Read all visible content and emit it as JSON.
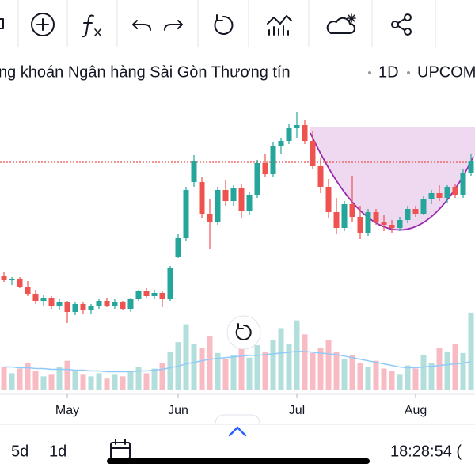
{
  "header": {
    "title": "ng khoán Ngân hàng Sài Gòn Thương tín",
    "interval": "1D",
    "exchange": "UPCOM"
  },
  "chart_data": {
    "type": "candlestick",
    "categories": [
      null,
      null,
      null,
      null,
      null,
      null,
      null,
      null,
      "May",
      null,
      null,
      null,
      null,
      null,
      null,
      null,
      null,
      null,
      null,
      null,
      null,
      null,
      "Jun",
      null,
      null,
      null,
      null,
      null,
      null,
      null,
      null,
      null,
      null,
      null,
      null,
      null,
      null,
      "Jul",
      null,
      null,
      null,
      null,
      null,
      null,
      null,
      null,
      null,
      null,
      null,
      null,
      null,
      null,
      "Aug",
      null,
      null,
      null,
      null,
      null,
      null,
      null
    ],
    "ohlc": [
      [
        15.2,
        15.6,
        14.4,
        14.6
      ],
      [
        14.6,
        15.0,
        14.0,
        14.8
      ],
      [
        14.8,
        15.0,
        13.6,
        13.8
      ],
      [
        13.8,
        14.5,
        12.6,
        12.9
      ],
      [
        12.9,
        13.4,
        11.6,
        12.0
      ],
      [
        12.0,
        12.8,
        11.4,
        12.4
      ],
      [
        12.4,
        12.6,
        11.0,
        11.4
      ],
      [
        11.4,
        12.2,
        10.8,
        11.8
      ],
      [
        11.8,
        12.0,
        9.2,
        10.6
      ],
      [
        10.6,
        11.8,
        10.2,
        11.6
      ],
      [
        11.6,
        11.8,
        10.4,
        10.8
      ],
      [
        10.8,
        11.6,
        10.4,
        11.4
      ],
      [
        11.4,
        12.2,
        11.0,
        12.0
      ],
      [
        12.0,
        12.4,
        11.2,
        11.4
      ],
      [
        11.4,
        12.2,
        11.0,
        11.8
      ],
      [
        11.8,
        12.0,
        10.8,
        11.0
      ],
      [
        11.0,
        12.4,
        10.6,
        12.2
      ],
      [
        12.2,
        13.4,
        12.0,
        13.2
      ],
      [
        13.2,
        13.6,
        12.4,
        12.6
      ],
      [
        12.6,
        13.4,
        12.2,
        13.0
      ],
      [
        13.0,
        13.2,
        11.2,
        12.2
      ],
      [
        12.2,
        16.4,
        12.0,
        16.2
      ],
      [
        17.6,
        20.4,
        17.4,
        20.0
      ],
      [
        20.0,
        26.4,
        19.6,
        26.0
      ],
      [
        27.0,
        30.4,
        26.4,
        29.6
      ],
      [
        27.0,
        27.6,
        22.4,
        23.0
      ],
      [
        23.0,
        24.8,
        18.6,
        22.0
      ],
      [
        22.0,
        26.4,
        21.6,
        26.0
      ],
      [
        26.0,
        27.2,
        24.0,
        24.6
      ],
      [
        24.6,
        26.6,
        24.0,
        26.2
      ],
      [
        26.2,
        26.8,
        22.4,
        23.4
      ],
      [
        23.4,
        25.8,
        22.8,
        25.4
      ],
      [
        25.4,
        29.8,
        25.0,
        29.4
      ],
      [
        29.4,
        30.6,
        27.6,
        28.0
      ],
      [
        28.0,
        32.0,
        27.6,
        31.6
      ],
      [
        31.6,
        32.6,
        30.6,
        32.2
      ],
      [
        32.2,
        34.4,
        31.8,
        33.8
      ],
      [
        33.8,
        35.8,
        32.6,
        34.2
      ],
      [
        34.2,
        34.8,
        31.8,
        32.2
      ],
      [
        32.2,
        33.4,
        28.6,
        29.0
      ],
      [
        29.0,
        30.0,
        25.6,
        26.4
      ],
      [
        26.4,
        27.4,
        22.4,
        23.2
      ],
      [
        23.2,
        25.0,
        20.4,
        21.2
      ],
      [
        21.2,
        24.6,
        20.8,
        24.2
      ],
      [
        24.2,
        27.8,
        22.0,
        22.6
      ],
      [
        22.6,
        24.0,
        19.8,
        20.6
      ],
      [
        20.6,
        23.6,
        20.2,
        23.2
      ],
      [
        23.2,
        23.6,
        21.6,
        22.0
      ],
      [
        22.0,
        22.8,
        20.8,
        21.6
      ],
      [
        21.6,
        22.2,
        20.6,
        21.2
      ],
      [
        21.2,
        22.6,
        20.8,
        22.2
      ],
      [
        22.2,
        24.0,
        21.8,
        23.6
      ],
      [
        23.6,
        24.0,
        22.6,
        23.0
      ],
      [
        23.0,
        25.2,
        22.8,
        24.8
      ],
      [
        24.8,
        26.0,
        24.2,
        25.6
      ],
      [
        25.6,
        26.6,
        24.6,
        25.0
      ],
      [
        25.0,
        26.6,
        24.4,
        26.4
      ],
      [
        26.4,
        26.8,
        25.0,
        25.4
      ],
      [
        25.4,
        28.6,
        25.0,
        28.2
      ],
      [
        28.2,
        30.6,
        27.8,
        29.6
      ]
    ],
    "volume": [
      30,
      22,
      28,
      35,
      25,
      18,
      20,
      30,
      38,
      25,
      20,
      18,
      22,
      15,
      20,
      18,
      25,
      30,
      22,
      28,
      35,
      50,
      62,
      85,
      60,
      55,
      70,
      48,
      40,
      45,
      55,
      42,
      58,
      50,
      65,
      80,
      60,
      90,
      72,
      48,
      55,
      65,
      50,
      40,
      45,
      35,
      30,
      38,
      28,
      25,
      20,
      32,
      28,
      45,
      35,
      55,
      50,
      60,
      48,
      100
    ],
    "volume_ma": [
      30,
      30,
      29,
      29,
      28,
      28,
      27,
      27,
      27,
      26,
      26,
      25,
      25,
      24,
      24,
      24,
      24,
      25,
      25,
      26,
      27,
      29,
      31,
      34,
      36,
      38,
      40,
      41,
      42,
      43,
      44,
      45,
      45,
      46,
      47,
      48,
      49,
      50,
      50,
      49,
      48,
      47,
      46,
      44,
      42,
      40,
      38,
      36,
      34,
      32,
      30,
      29,
      29,
      30,
      31,
      32,
      33,
      34,
      35,
      37
    ],
    "ylim": [
      0,
      38
    ],
    "volume_ylim": [
      0,
      380
    ],
    "price_line": 29.5,
    "up_color": "#26a69a",
    "down_color": "#ef5350",
    "volume_up_color": "#b2dfdb",
    "volume_down_color": "#f8bbc3",
    "volume_ma_color": "#90caf9"
  },
  "footer": {
    "ranges": [
      "5d",
      "1d"
    ],
    "time": "18:28:54 ("
  }
}
